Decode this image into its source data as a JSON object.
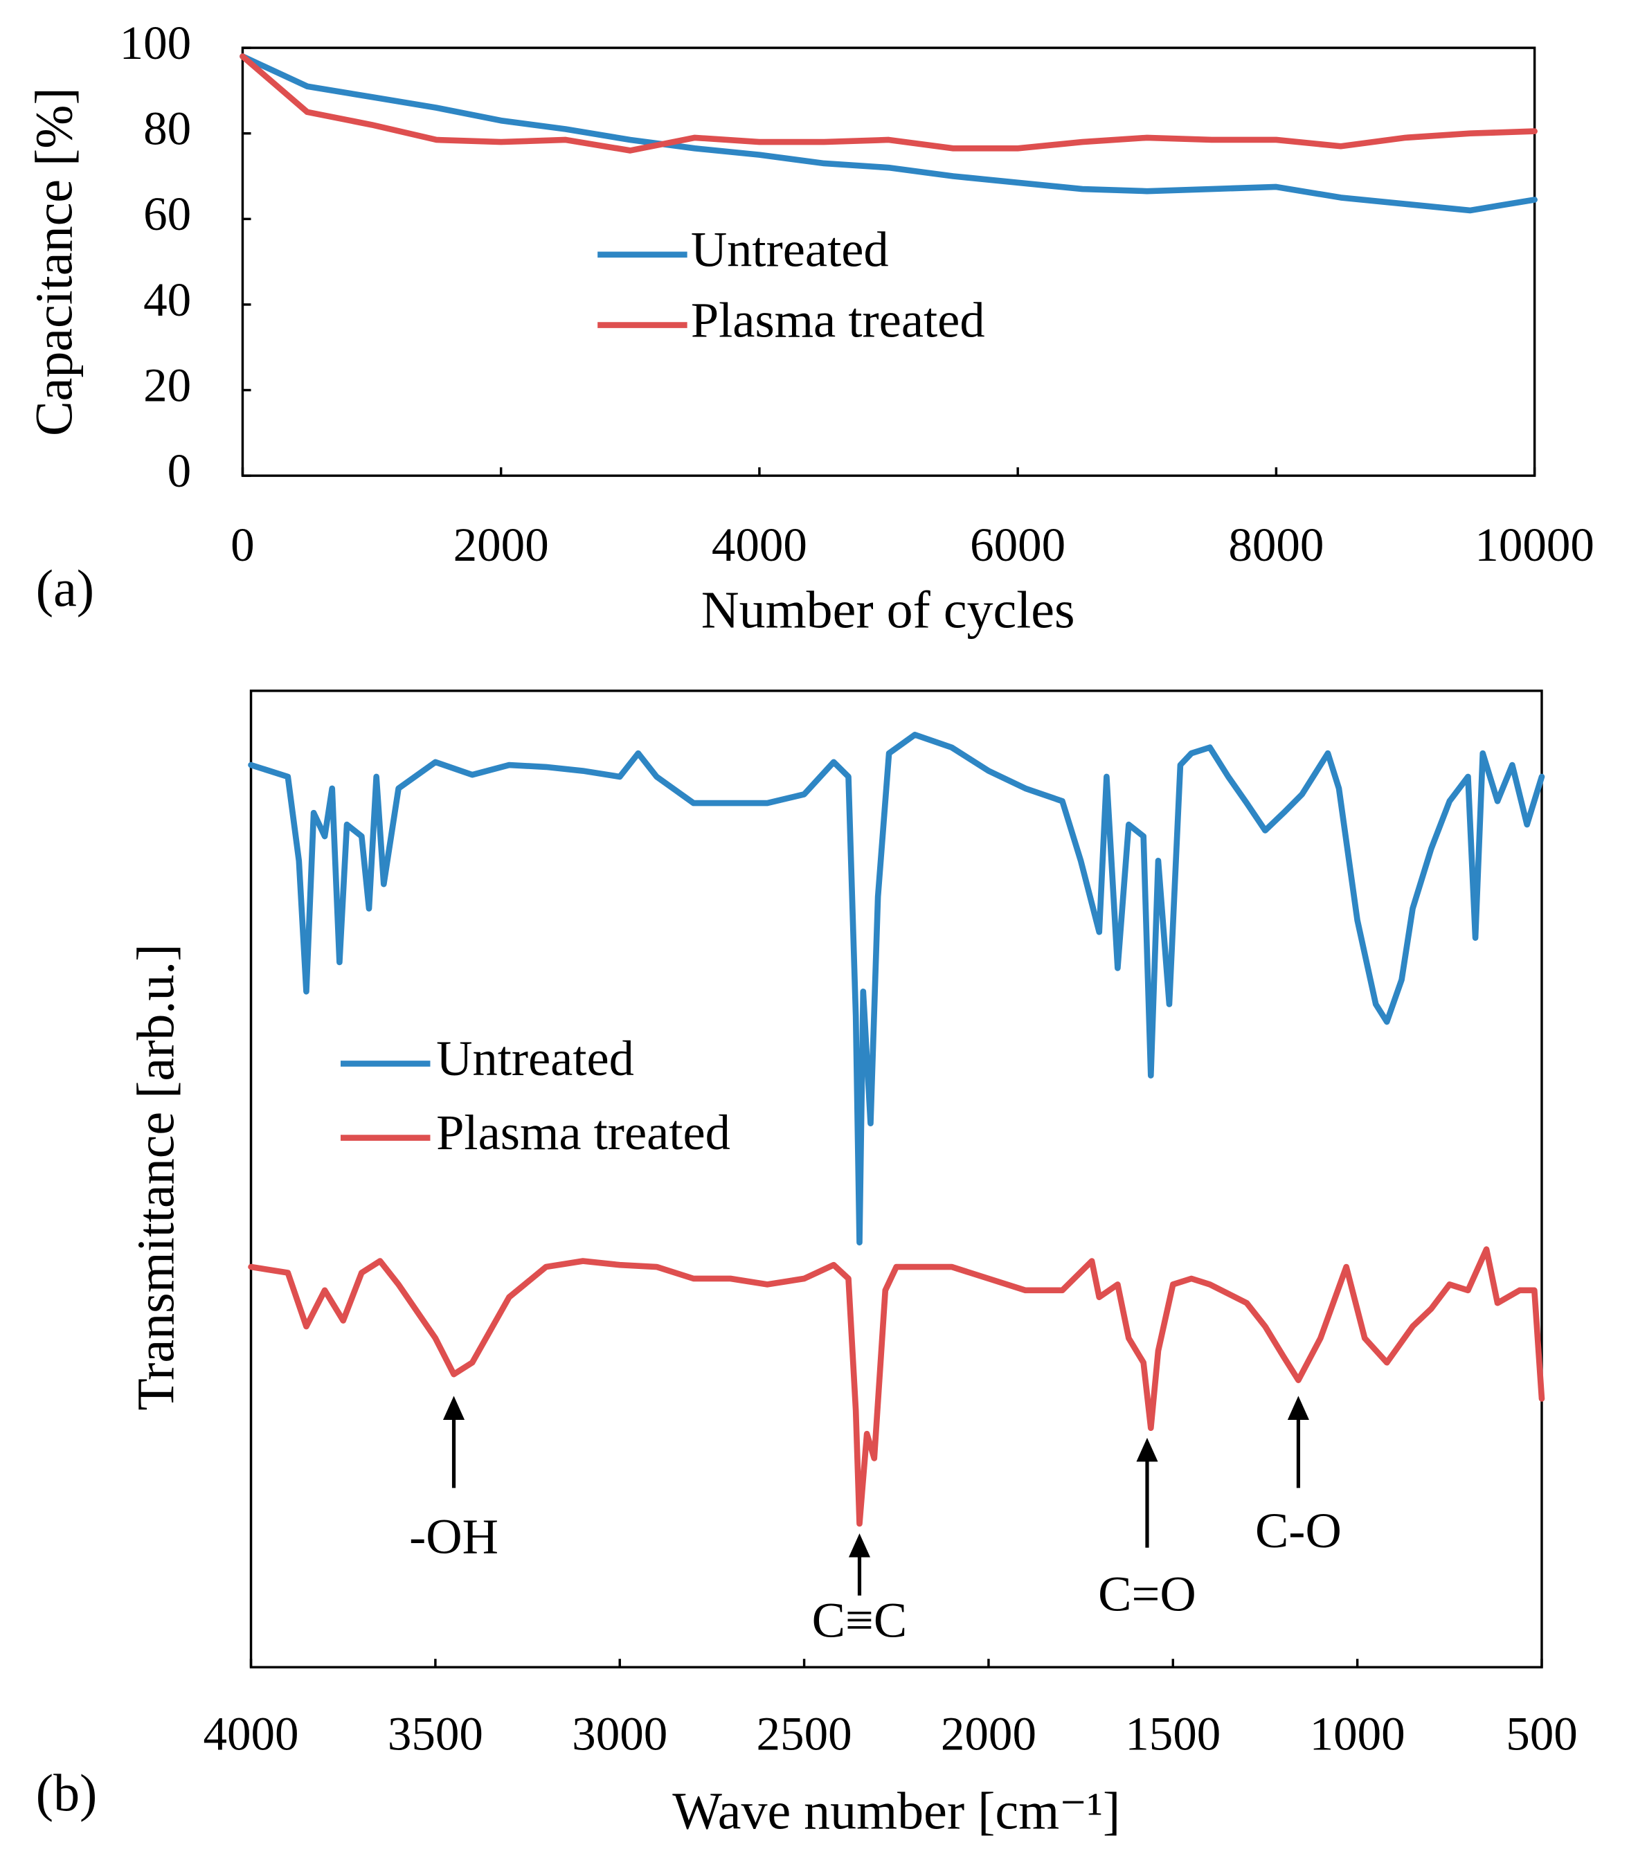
{
  "chart_data": [
    {
      "type": "line",
      "panel_label": "(a)",
      "xlabel": "Number of cycles",
      "ylabel": "Capacitance [%]",
      "x": [
        0,
        500,
        1000,
        1500,
        2000,
        2500,
        3000,
        3500,
        4000,
        4500,
        5000,
        5500,
        6000,
        6500,
        7000,
        7500,
        8000,
        8500,
        9000,
        9500,
        10000
      ],
      "series": [
        {
          "name": "Untreated",
          "color": "#2e86c4",
          "values": [
            98,
            91,
            88.5,
            86,
            83,
            81,
            78.5,
            76.5,
            75,
            73,
            72,
            70,
            68.5,
            67,
            66.5,
            67,
            67.5,
            65,
            63.5,
            62,
            64.5
          ]
        },
        {
          "name": "Plasma treated",
          "color": "#de4f4f",
          "values": [
            98,
            85,
            82,
            78.5,
            78,
            78.5,
            76,
            79,
            78,
            78,
            78.5,
            76.5,
            76.5,
            78,
            79,
            78.5,
            78.5,
            77,
            79,
            80,
            80.5
          ]
        }
      ],
      "xlim": [
        0,
        10000
      ],
      "xticks": [
        0,
        2000,
        4000,
        6000,
        8000,
        10000
      ],
      "ylim": [
        0,
        100
      ],
      "yticks": [
        0,
        20,
        40,
        60,
        80,
        100
      ],
      "grid": false
    },
    {
      "type": "line",
      "panel_label": "(b)",
      "xlabel": "Wave number [cm⁻¹]",
      "ylabel": "Transmittance [arb.u.]",
      "series": [
        {
          "name": "Untreated",
          "color": "#2e86c4",
          "x": [
            4000,
            3950,
            3900,
            3870,
            3850,
            3830,
            3800,
            3780,
            3760,
            3740,
            3700,
            3680,
            3660,
            3640,
            3600,
            3500,
            3400,
            3300,
            3200,
            3100,
            3000,
            2950,
            2900,
            2800,
            2700,
            2600,
            2500,
            2420,
            2380,
            2360,
            2350,
            2340,
            2320,
            2300,
            2270,
            2200,
            2100,
            2000,
            1900,
            1800,
            1750,
            1700,
            1680,
            1650,
            1620,
            1580,
            1560,
            1540,
            1510,
            1480,
            1450,
            1400,
            1350,
            1300,
            1250,
            1200,
            1150,
            1080,
            1050,
            1000,
            950,
            920,
            880,
            850,
            800,
            750,
            700,
            680,
            660,
            620,
            580,
            540,
            500
          ],
          "values": [
            92.4,
            91.8,
            91.2,
            82.6,
            69.2,
            87.5,
            85.1,
            90.0,
            72.2,
            86.3,
            85.1,
            77.7,
            91.2,
            80.2,
            90.0,
            92.7,
            91.4,
            92.4,
            92.2,
            91.8,
            91.2,
            93.6,
            91.2,
            88.5,
            88.5,
            88.5,
            89.4,
            92.7,
            91.2,
            66.7,
            43.5,
            69.2,
            55.7,
            78.9,
            93.6,
            95.5,
            94.2,
            91.8,
            90.0,
            88.7,
            82.6,
            75.3,
            91.2,
            71.6,
            86.3,
            85.1,
            60.6,
            82.6,
            67.9,
            92.4,
            93.6,
            94.2,
            91.2,
            88.5,
            85.7,
            87.5,
            89.4,
            93.6,
            90.0,
            76.5,
            67.9,
            66.1,
            70.4,
            77.7,
            83.8,
            88.7,
            91.2,
            74.7,
            93.6,
            88.7,
            92.4,
            86.3,
            91.2
          ]
        },
        {
          "name": "Plasma treated",
          "color": "#de4f4f",
          "x": [
            4000,
            3900,
            3850,
            3800,
            3750,
            3700,
            3650,
            3600,
            3500,
            3450,
            3400,
            3300,
            3200,
            3100,
            3000,
            2900,
            2800,
            2700,
            2600,
            2500,
            2420,
            2380,
            2360,
            2350,
            2330,
            2310,
            2280,
            2250,
            2100,
            2000,
            1900,
            1800,
            1720,
            1700,
            1650,
            1620,
            1580,
            1560,
            1540,
            1500,
            1450,
            1400,
            1300,
            1250,
            1200,
            1160,
            1100,
            1030,
            980,
            920,
            850,
            800,
            750,
            700,
            650,
            620,
            560,
            520,
            500
          ],
          "values": [
            41.0,
            40.4,
            34.9,
            38.6,
            35.5,
            40.4,
            41.6,
            39.2,
            33.7,
            30.0,
            31.2,
            37.9,
            41.0,
            41.6,
            41.2,
            41.0,
            39.8,
            39.8,
            39.2,
            39.8,
            41.2,
            39.8,
            26.3,
            14.7,
            23.9,
            21.4,
            38.6,
            41.0,
            41.0,
            39.8,
            38.6,
            38.6,
            41.6,
            37.9,
            39.2,
            33.7,
            31.2,
            24.5,
            32.4,
            39.2,
            39.8,
            39.2,
            37.3,
            34.9,
            31.8,
            29.4,
            33.7,
            41.0,
            33.7,
            31.2,
            34.9,
            36.7,
            39.2,
            38.6,
            42.8,
            37.3,
            38.6,
            38.6,
            27.5
          ]
        }
      ],
      "annotations": [
        {
          "text": "-OH",
          "x": 3450
        },
        {
          "text": "C≡C",
          "x": 2350
        },
        {
          "text": "C=O",
          "x": 1570
        },
        {
          "text": "C-O",
          "x": 1160
        }
      ],
      "xlim": [
        4000,
        500
      ],
      "xticks": [
        4000,
        3500,
        3000,
        2500,
        2000,
        1500,
        1000,
        500
      ],
      "ylim": [
        0,
        100
      ],
      "grid": false
    }
  ]
}
